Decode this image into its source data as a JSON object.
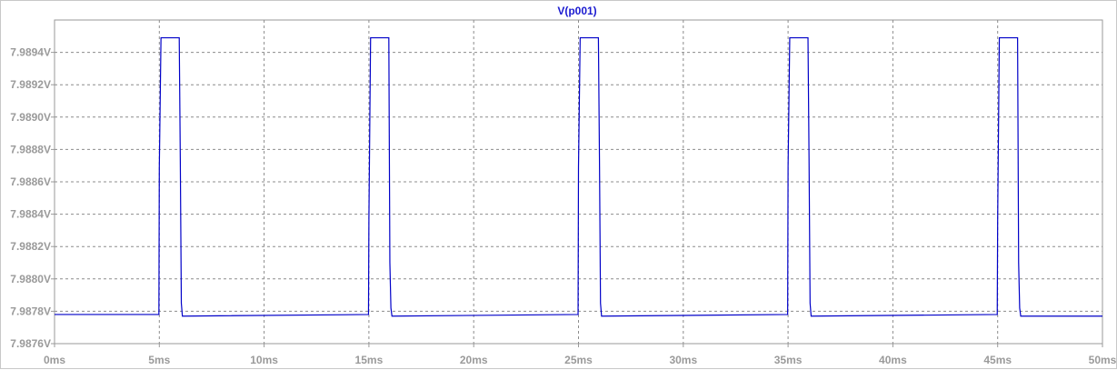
{
  "chart_data": {
    "type": "line",
    "title": "V(p001)",
    "xlabel": "",
    "ylabel": "",
    "xlim": [
      0,
      50
    ],
    "ylim": [
      7.9876,
      7.9896
    ],
    "x_ticks": [
      0,
      5,
      10,
      15,
      20,
      25,
      30,
      35,
      40,
      45,
      50
    ],
    "x_tick_labels": [
      "0ms",
      "5ms",
      "10ms",
      "15ms",
      "20ms",
      "25ms",
      "30ms",
      "35ms",
      "40ms",
      "45ms",
      "50ms"
    ],
    "y_ticks": [
      7.9876,
      7.9878,
      7.988,
      7.9882,
      7.9884,
      7.9886,
      7.9888,
      7.989,
      7.9892,
      7.9894
    ],
    "y_tick_labels": [
      "7.9876V",
      "7.9878V",
      "7.9880V",
      "7.9882V",
      "7.9884V",
      "7.9886V",
      "7.9888V",
      "7.9890V",
      "7.9892V",
      "7.9894V"
    ],
    "grid": true,
    "series": [
      {
        "name": "V(p001)",
        "color": "#0000c8",
        "x": [
          0,
          4.98,
          5.0,
          5.08,
          5.95,
          6.0,
          6.05,
          6.1,
          14.98,
          15.0,
          15.08,
          15.95,
          16.0,
          16.05,
          16.1,
          24.98,
          25.0,
          25.08,
          25.95,
          26.0,
          26.05,
          26.1,
          34.98,
          35.0,
          35.08,
          35.95,
          36.0,
          36.05,
          36.1,
          44.98,
          45.0,
          45.08,
          45.95,
          46.0,
          46.05,
          46.1,
          50
        ],
        "y": [
          7.98778,
          7.98778,
          7.98869,
          7.98949,
          7.98949,
          7.98875,
          7.98785,
          7.98777,
          7.98778,
          7.98837,
          7.98949,
          7.98949,
          7.9881,
          7.98782,
          7.98777,
          7.98778,
          7.98869,
          7.98949,
          7.98949,
          7.98875,
          7.98785,
          7.98777,
          7.98778,
          7.98869,
          7.98949,
          7.98949,
          7.98875,
          7.98785,
          7.98777,
          7.98778,
          7.98837,
          7.98949,
          7.98949,
          7.9881,
          7.98782,
          7.98777,
          7.98777
        ]
      }
    ]
  },
  "colors": {
    "trace": "#0000c8",
    "title": "#1a1ad0",
    "tick_text": "#9a9a9a",
    "grid": "#8c8c8c",
    "axis": "#9a9a9a"
  }
}
